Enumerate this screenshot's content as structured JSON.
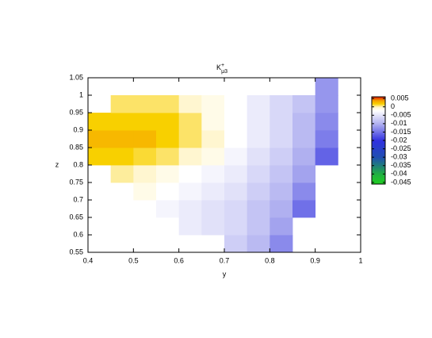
{
  "chart_data": {
    "type": "heatmap",
    "title": {
      "base": "K",
      "sup": "+",
      "sub": "μ3"
    },
    "xlabel": "y",
    "ylabel": "z",
    "xlim": [
      0.4,
      1
    ],
    "ylim": [
      0.55,
      1.05
    ],
    "xticks": [
      0.4,
      0.5,
      0.6,
      0.7,
      0.8,
      0.9,
      1
    ],
    "yticks": [
      0.55,
      0.6,
      0.65,
      0.7,
      0.75,
      0.8,
      0.85,
      0.9,
      0.95,
      1,
      1.05
    ],
    "x_bins": [
      0.4,
      0.45,
      0.5,
      0.55,
      0.6,
      0.65,
      0.7,
      0.75,
      0.8,
      0.85,
      0.9,
      0.95,
      1.0
    ],
    "y_bins": [
      0.55,
      0.6,
      0.65,
      0.7,
      0.75,
      0.8,
      0.85,
      0.9,
      0.95,
      1.0,
      1.05
    ],
    "values": [
      [
        null,
        null,
        null,
        null,
        null,
        null,
        -0.007,
        -0.009,
        -0.013,
        null,
        null,
        null
      ],
      [
        null,
        null,
        null,
        null,
        -0.004,
        -0.005,
        -0.006,
        -0.008,
        -0.011,
        null,
        null,
        null
      ],
      [
        null,
        null,
        null,
        -0.003,
        -0.004,
        -0.005,
        -0.006,
        -0.008,
        -0.01,
        -0.015,
        null,
        null
      ],
      [
        null,
        null,
        -0.001,
        -0.002,
        -0.003,
        -0.004,
        -0.005,
        -0.007,
        -0.009,
        -0.013,
        null,
        null
      ],
      [
        null,
        0.0005,
        0,
        -0.001,
        -0.002,
        -0.003,
        -0.004,
        -0.006,
        -0.008,
        -0.011,
        null,
        null
      ],
      [
        0.002,
        0.002,
        0.0015,
        0.001,
        0,
        -0.001,
        -0.003,
        -0.005,
        -0.007,
        -0.01,
        -0.016,
        null
      ],
      [
        0.003,
        0.003,
        0.003,
        0.002,
        0.001,
        0,
        -0.002,
        -0.004,
        -0.006,
        -0.009,
        -0.014,
        null
      ],
      [
        0.002,
        0.002,
        0.002,
        0.002,
        0.001,
        -0.001,
        -0.002,
        -0.004,
        -0.006,
        -0.009,
        -0.013,
        null
      ],
      [
        null,
        0.001,
        0.001,
        0.001,
        0,
        -0.001,
        -0.002,
        -0.004,
        -0.006,
        -0.008,
        -0.012,
        null
      ],
      [
        null,
        null,
        null,
        null,
        null,
        null,
        null,
        null,
        null,
        null,
        -0.012,
        null
      ]
    ],
    "colorbar": {
      "lim": [
        -0.046,
        0.006
      ],
      "ticks": [
        0.005,
        0,
        -0.005,
        -0.01,
        -0.015,
        -0.02,
        -0.025,
        -0.03,
        -0.035,
        -0.04,
        -0.045
      ],
      "palette": [
        [
          -0.046,
          "#20d020"
        ],
        [
          -0.04,
          "#20b040"
        ],
        [
          -0.03,
          "#2050b0"
        ],
        [
          -0.02,
          "#3030e0"
        ],
        [
          -0.01,
          "#b0b0f0"
        ],
        [
          -0.002,
          "#ffffff"
        ],
        [
          0,
          "#fff6d0"
        ],
        [
          0.002,
          "#f8d000"
        ],
        [
          0.004,
          "#f5a000"
        ],
        [
          0.006,
          "#e02000"
        ]
      ]
    }
  }
}
